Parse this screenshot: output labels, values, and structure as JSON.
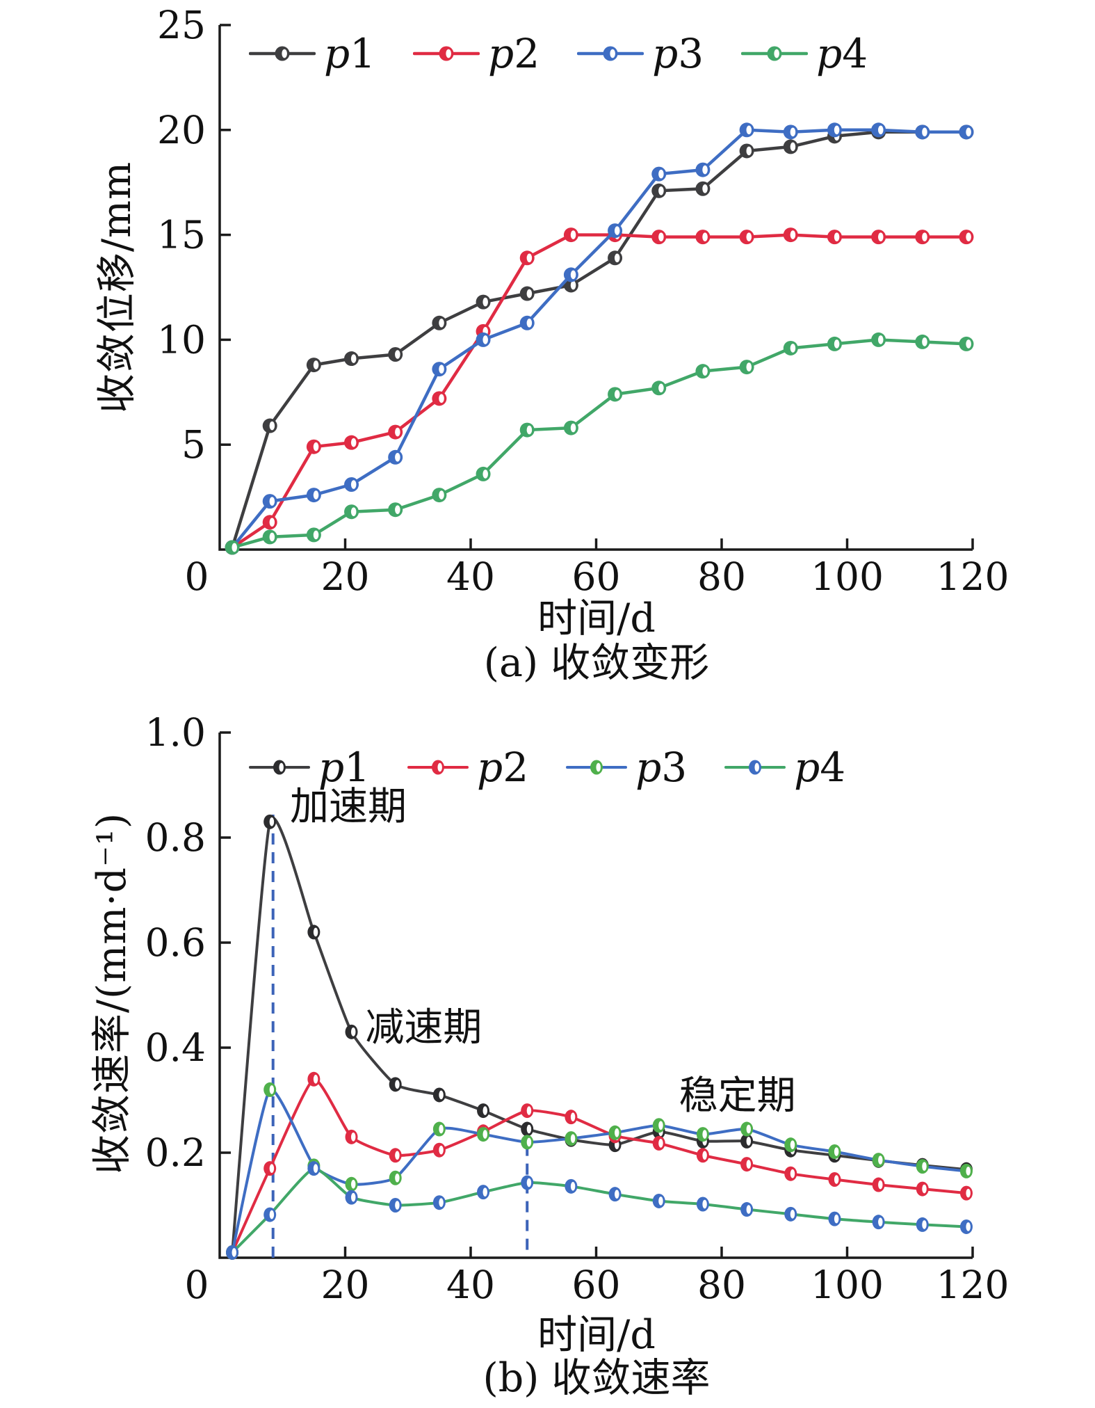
{
  "figure_background": "#ffffff",
  "axis_color": "#1a1a1a",
  "chart_data": [
    {
      "type": "line",
      "panel": "a",
      "caption": "(a) 收敛变形",
      "xlabel": "时间/d",
      "ylabel": "收敛位移/mm",
      "xlim": [
        0,
        120
      ],
      "ylim": [
        0,
        25
      ],
      "xticks": [
        0,
        20,
        40,
        60,
        80,
        100,
        120
      ],
      "yticks": [
        5,
        10,
        15,
        20,
        25
      ],
      "ytick_labels": [
        "5",
        "10",
        "15",
        "20",
        "25"
      ],
      "grid": false,
      "smooth": false,
      "legend_position": "top-inside",
      "x": [
        2,
        8,
        15,
        21,
        28,
        35,
        42,
        49,
        56,
        63,
        70,
        77,
        84,
        91,
        98,
        105,
        112,
        119
      ],
      "series": [
        {
          "name": "p1",
          "line_color": "#3e3e40",
          "marker_color": "#3e3e40",
          "values": [
            0.1,
            5.9,
            8.8,
            9.1,
            9.3,
            10.8,
            11.8,
            12.2,
            12.6,
            13.9,
            17.1,
            17.2,
            19.0,
            19.2,
            19.7,
            19.9,
            19.9,
            19.9
          ]
        },
        {
          "name": "p2",
          "line_color": "#e02b43",
          "marker_color": "#e02b43",
          "values": [
            0.1,
            1.3,
            4.9,
            5.1,
            5.6,
            7.2,
            10.4,
            13.9,
            15.0,
            15.0,
            14.9,
            14.9,
            14.9,
            15.0,
            14.9,
            14.9,
            14.9,
            14.9
          ]
        },
        {
          "name": "p3",
          "line_color": "#3e6dc3",
          "marker_color": "#3e6dc3",
          "values": [
            0.1,
            2.3,
            2.6,
            3.1,
            4.4,
            8.6,
            10.0,
            10.8,
            13.1,
            15.2,
            17.9,
            18.1,
            20.0,
            19.9,
            20.0,
            20.0,
            19.9,
            19.9
          ]
        },
        {
          "name": "p4",
          "line_color": "#41a768",
          "marker_color": "#41a768",
          "values": [
            0.1,
            0.6,
            0.7,
            1.8,
            1.9,
            2.6,
            3.6,
            5.7,
            5.8,
            7.4,
            7.7,
            8.5,
            8.7,
            9.6,
            9.8,
            10.0,
            9.9,
            9.8
          ]
        }
      ]
    },
    {
      "type": "line",
      "panel": "b",
      "caption": "(b) 收敛速率",
      "xlabel": "时间/d",
      "ylabel": "收敛速率/(mm·d⁻¹)",
      "xlim": [
        0,
        120
      ],
      "ylim": [
        0,
        1.0
      ],
      "xticks": [
        0,
        20,
        40,
        60,
        80,
        100,
        120
      ],
      "yticks": [
        0.2,
        0.4,
        0.6,
        0.8,
        1.0
      ],
      "ytick_labels": [
        "0.2",
        "0.4",
        "0.6",
        "0.8",
        "1.0"
      ],
      "grid": false,
      "smooth": true,
      "legend_position": "top-inside",
      "x": [
        2,
        8,
        15,
        21,
        28,
        35,
        42,
        49,
        56,
        63,
        70,
        77,
        84,
        91,
        98,
        105,
        112,
        119
      ],
      "series": [
        {
          "name": "p1",
          "line_color": "#3e3e40",
          "marker_color": "#2c2c2e",
          "values": [
            0.01,
            0.83,
            0.62,
            0.43,
            0.33,
            0.31,
            0.28,
            0.245,
            0.225,
            0.215,
            0.24,
            0.222,
            0.222,
            0.205,
            0.195,
            0.185,
            0.176,
            0.168
          ]
        },
        {
          "name": "p2",
          "line_color": "#e02b43",
          "marker_color": "#e02b43",
          "values": [
            0.01,
            0.17,
            0.34,
            0.23,
            0.195,
            0.205,
            0.24,
            0.28,
            0.268,
            0.232,
            0.218,
            0.195,
            0.178,
            0.16,
            0.149,
            0.139,
            0.131,
            0.123
          ]
        },
        {
          "name": "p3",
          "line_color": "#3e6dc3",
          "marker_color": "#4fb04b",
          "values": [
            0.01,
            0.32,
            0.175,
            0.14,
            0.152,
            0.245,
            0.235,
            0.22,
            0.227,
            0.238,
            0.252,
            0.235,
            0.245,
            0.215,
            0.202,
            0.186,
            0.174,
            0.165
          ]
        },
        {
          "name": "p4",
          "line_color": "#41a768",
          "marker_color": "#3e6dc3",
          "values": [
            0.01,
            0.082,
            0.17,
            0.115,
            0.1,
            0.105,
            0.125,
            0.143,
            0.136,
            0.121,
            0.108,
            0.102,
            0.092,
            0.083,
            0.074,
            0.068,
            0.063,
            0.059
          ]
        }
      ],
      "annotations": [
        {
          "text": "加速期",
          "x": 20.5,
          "y": 0.86
        },
        {
          "text": "减速期",
          "x": 32.5,
          "y": 0.44
        },
        {
          "text": "稳定期",
          "x": 82.5,
          "y": 0.31
        }
      ],
      "dashed_lines": [
        {
          "x": 8.5,
          "y1": 0.0,
          "y2": 0.85,
          "color": "#3c63b8"
        },
        {
          "x": 49,
          "y1": 0.015,
          "y2": 0.218,
          "color": "#3c63b8"
        }
      ]
    }
  ]
}
